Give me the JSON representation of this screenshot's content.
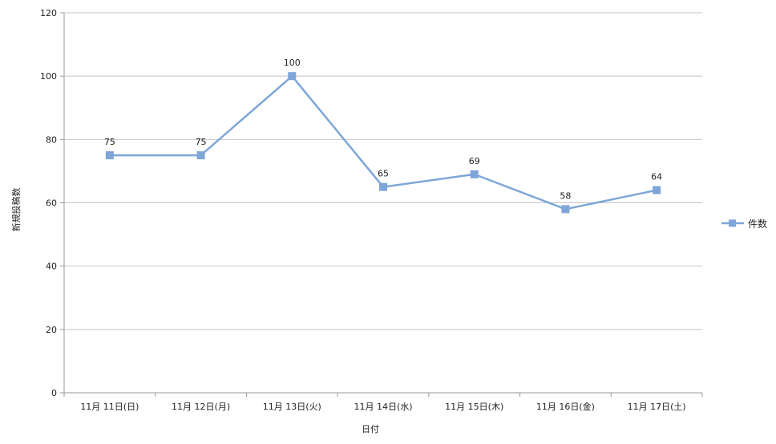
{
  "chart_data": {
    "type": "line",
    "categories": [
      "11月 11日(日)",
      "11月 12日(月)",
      "11月 13日(火)",
      "11月 14日(水)",
      "11月 15日(木)",
      "11月 16日(金)",
      "11月 17日(土)"
    ],
    "series": [
      {
        "name": "件数",
        "values": [
          75,
          75,
          100,
          65,
          69,
          58,
          64
        ],
        "color": "#7ea6d8"
      }
    ],
    "xlabel": "日付",
    "ylabel": "新規投稿数",
    "ylim": [
      0,
      120
    ],
    "yticks": [
      0,
      20,
      40,
      60,
      80,
      100,
      120
    ],
    "grid": true,
    "legend": "right",
    "data_labels": true
  }
}
